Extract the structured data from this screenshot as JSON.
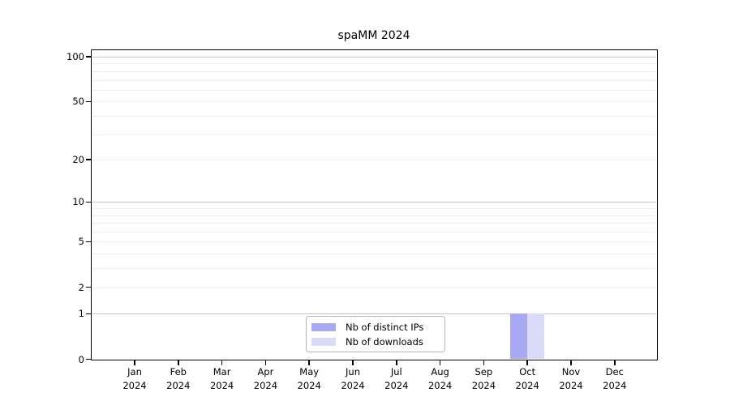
{
  "chart_data": {
    "type": "bar",
    "title": "spaMM 2024",
    "x_months": [
      "Jan",
      "Feb",
      "Mar",
      "Apr",
      "May",
      "Jun",
      "Jul",
      "Aug",
      "Sep",
      "Oct",
      "Nov",
      "Dec"
    ],
    "x_year": "2024",
    "series": [
      {
        "name": "Nb of distinct IPs",
        "color": "#a9a9f3",
        "values": [
          0,
          0,
          0,
          0,
          0,
          0,
          0,
          0,
          0,
          1,
          0,
          0
        ]
      },
      {
        "name": "Nb of downloads",
        "color": "#dadaf9",
        "values": [
          0,
          0,
          0,
          0,
          0,
          0,
          0,
          0,
          0,
          1,
          0,
          0
        ]
      }
    ],
    "y_axis": {
      "scale": "log1p",
      "ylim": [
        0,
        100
      ],
      "tick_labels": [
        0,
        1,
        2,
        5,
        10,
        20,
        50,
        100
      ],
      "gridlines_decade": [
        1,
        10,
        100
      ],
      "gridlines_other": [
        2,
        3,
        4,
        5,
        6,
        7,
        8,
        9,
        20,
        30,
        40,
        50,
        60,
        70,
        80,
        90
      ]
    },
    "legend_position": "bottom-center",
    "grid": "horizontal"
  },
  "colors": {
    "spine": "#000000",
    "gridline_decade": "#c2c2c2",
    "gridline_other": "#ececec",
    "legend_border": "#b5b5b5",
    "background": "#ffffff",
    "text": "#000000"
  }
}
